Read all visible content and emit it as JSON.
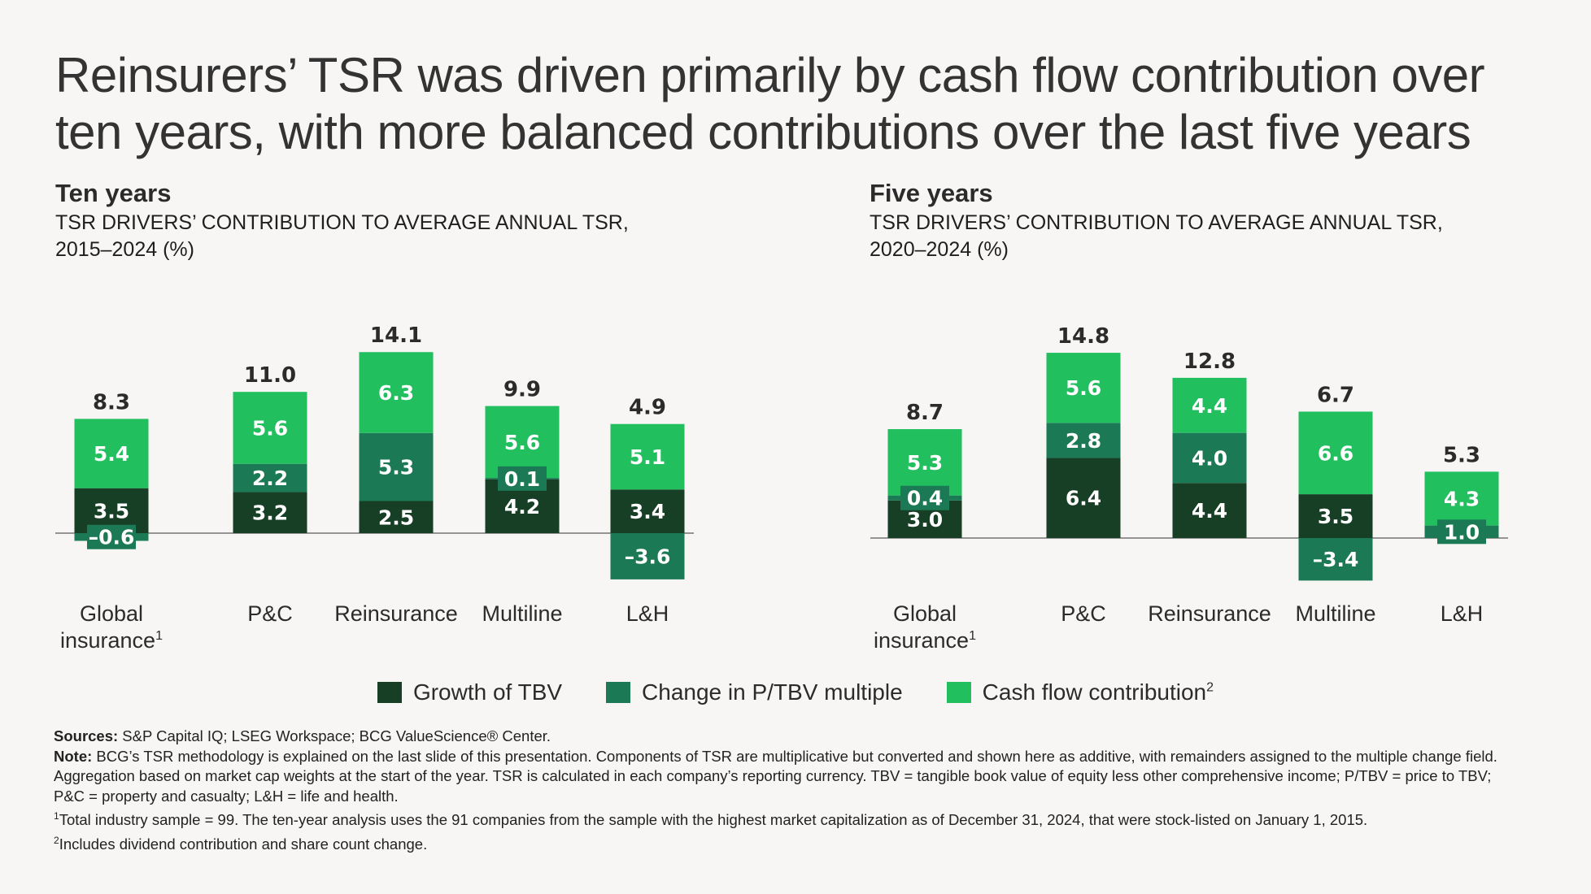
{
  "title": {
    "line1": "Reinsurers’ TSR was driven primarily by cash flow contribution over",
    "line2": "ten years, with more balanced contributions over the last five years"
  },
  "colors": {
    "growth_tbv": "#173f25",
    "multiple": "#1b7a55",
    "cash_flow": "#22bf5f",
    "background": "#f7f6f4"
  },
  "legend": {
    "growth_tbv": "Growth of TBV",
    "multiple": "Change in P/TBV multiple",
    "cash_flow": "Cash flow contribution",
    "cash_flow_sup": "2"
  },
  "panels": {
    "ten": {
      "heading": "Ten years",
      "subtitle_line1": "TSR DRIVERS’ CONTRIBUTION TO AVERAGE ANNUAL TSR,",
      "subtitle_line2": "2015–2024 (%)"
    },
    "five": {
      "heading": "Five years",
      "subtitle_line1": "TSR DRIVERS’ CONTRIBUTION TO AVERAGE ANNUAL TSR,",
      "subtitle_line2": "2020–2024 (%)"
    }
  },
  "chart_data": [
    {
      "type": "bar",
      "stacked": true,
      "title": "Ten years — TSR drivers’ contribution to average annual TSR, 2015–2024 (%)",
      "categories": [
        {
          "line1": "Global",
          "line2": "insurance",
          "sup": "1"
        },
        {
          "line1": "P&C"
        },
        {
          "line1": "Reinsurance"
        },
        {
          "line1": "Multiline"
        },
        {
          "line1": "L&H"
        }
      ],
      "totals": [
        "8.3",
        "11.0",
        "14.1",
        "9.9",
        "4.9"
      ],
      "series": [
        {
          "name": "Growth of TBV",
          "key": "growth_tbv",
          "values": [
            3.5,
            3.2,
            2.5,
            4.2,
            3.4
          ],
          "labels": [
            "3.5",
            "3.2",
            "2.5",
            "4.2",
            "3.4"
          ]
        },
        {
          "name": "Change in P/TBV multiple",
          "key": "multiple",
          "values": [
            -0.6,
            2.2,
            5.3,
            0.1,
            -3.6
          ],
          "labels": [
            "–0.6",
            "2.2",
            "5.3",
            "0.1",
            "–3.6"
          ]
        },
        {
          "name": "Cash flow contribution",
          "key": "cash_flow",
          "values": [
            5.4,
            5.6,
            6.3,
            5.6,
            5.1
          ],
          "labels": [
            "5.4",
            "5.6",
            "6.3",
            "5.6",
            "5.1"
          ]
        }
      ],
      "ylim": [
        -3.6,
        14.8
      ]
    },
    {
      "type": "bar",
      "stacked": true,
      "title": "Five years — TSR drivers’ contribution to average annual TSR, 2020–2024 (%)",
      "categories": [
        {
          "line1": "Global",
          "line2": "insurance",
          "sup": "1"
        },
        {
          "line1": "P&C"
        },
        {
          "line1": "Reinsurance"
        },
        {
          "line1": "Multiline"
        },
        {
          "line1": "L&H"
        }
      ],
      "totals": [
        "8.7",
        "14.8",
        "12.8",
        "6.7",
        "5.3"
      ],
      "series": [
        {
          "name": "Growth of TBV",
          "key": "growth_tbv",
          "values": [
            3.0,
            6.4,
            4.4,
            3.5,
            0
          ],
          "labels": [
            "3.0",
            "6.4",
            "4.4",
            "3.5",
            ""
          ]
        },
        {
          "name": "Change in P/TBV multiple",
          "key": "multiple",
          "values": [
            0.4,
            2.8,
            4.0,
            -3.4,
            1.0
          ],
          "labels": [
            "0.4",
            "2.8",
            "4.0",
            "–3.4",
            "1.0"
          ]
        },
        {
          "name": "Cash flow contribution",
          "key": "cash_flow",
          "values": [
            5.3,
            5.6,
            4.4,
            6.6,
            4.3
          ],
          "labels": [
            "5.3",
            "5.6",
            "4.4",
            "6.6",
            "4.3"
          ]
        }
      ],
      "ylim": [
        -3.4,
        14.8
      ]
    }
  ],
  "footnotes": {
    "sources_label": "Sources:",
    "sources_text": " S&P Capital IQ; LSEG Workspace; BCG ValueScience® Center.",
    "note_label": "Note:",
    "note_text": " BCG’s TSR methodology is explained on the last slide of this presentation. Components of TSR are multiplicative but converted and shown here as additive, with remainders assigned to the multiple change field. Aggregation based on market cap weights at the start of the year. TSR is calculated in each company’s reporting currency. TBV = tangible book value of equity less other comprehensive income; P/TBV = price to TBV; P&C = property and casualty; L&H = life and health.",
    "fn1_mark": "1",
    "fn1_text": "Total industry sample = 99. The ten-year analysis uses the 91 companies from the sample with the highest market capitalization as of December 31, 2024, that were stock-listed on January 1, 2015.",
    "fn2_mark": "2",
    "fn2_text": "Includes dividend contribution and share count change."
  }
}
